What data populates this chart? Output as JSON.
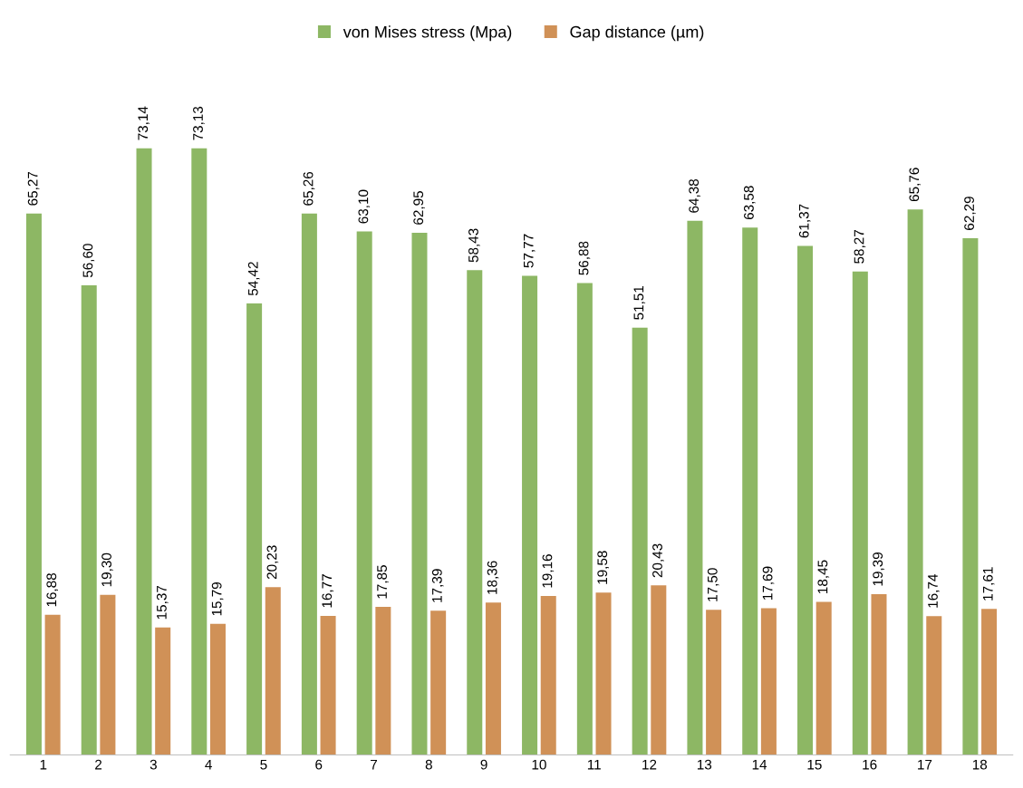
{
  "chart_data": {
    "type": "bar",
    "categories": [
      "1",
      "2",
      "3",
      "4",
      "5",
      "6",
      "7",
      "8",
      "9",
      "10",
      "11",
      "12",
      "13",
      "14",
      "15",
      "16",
      "17",
      "18"
    ],
    "series": [
      {
        "name": "von Mises stress (Mpa)",
        "color": "#8db764",
        "values": [
          65.27,
          56.6,
          73.14,
          73.13,
          54.42,
          65.26,
          63.1,
          62.95,
          58.43,
          57.77,
          56.88,
          51.51,
          64.38,
          63.58,
          61.37,
          58.27,
          65.76,
          62.29
        ],
        "value_labels": [
          "65,27",
          "56,60",
          "73,14",
          "73,13",
          "54,42",
          "65,26",
          "63,10",
          "62,95",
          "58,43",
          "57,77",
          "56,88",
          "51,51",
          "64,38",
          "63,58",
          "61,37",
          "58,27",
          "65,76",
          "62,29"
        ]
      },
      {
        "name": "Gap distance (µm)",
        "color": "#d09157",
        "values": [
          16.88,
          19.3,
          15.37,
          15.79,
          20.23,
          16.77,
          17.85,
          17.39,
          18.36,
          19.16,
          19.58,
          20.43,
          17.5,
          17.69,
          18.45,
          19.39,
          16.74,
          17.61
        ],
        "value_labels": [
          "16,88",
          "19,30",
          "15,37",
          "15,79",
          "20,23",
          "16,77",
          "17,85",
          "17,39",
          "18,36",
          "19,16",
          "19,58",
          "20,43",
          "17,50",
          "17,69",
          "18,45",
          "19,39",
          "16,74",
          "17,61"
        ]
      }
    ],
    "legend": "top",
    "grid": false,
    "tick_labels": "x"
  }
}
